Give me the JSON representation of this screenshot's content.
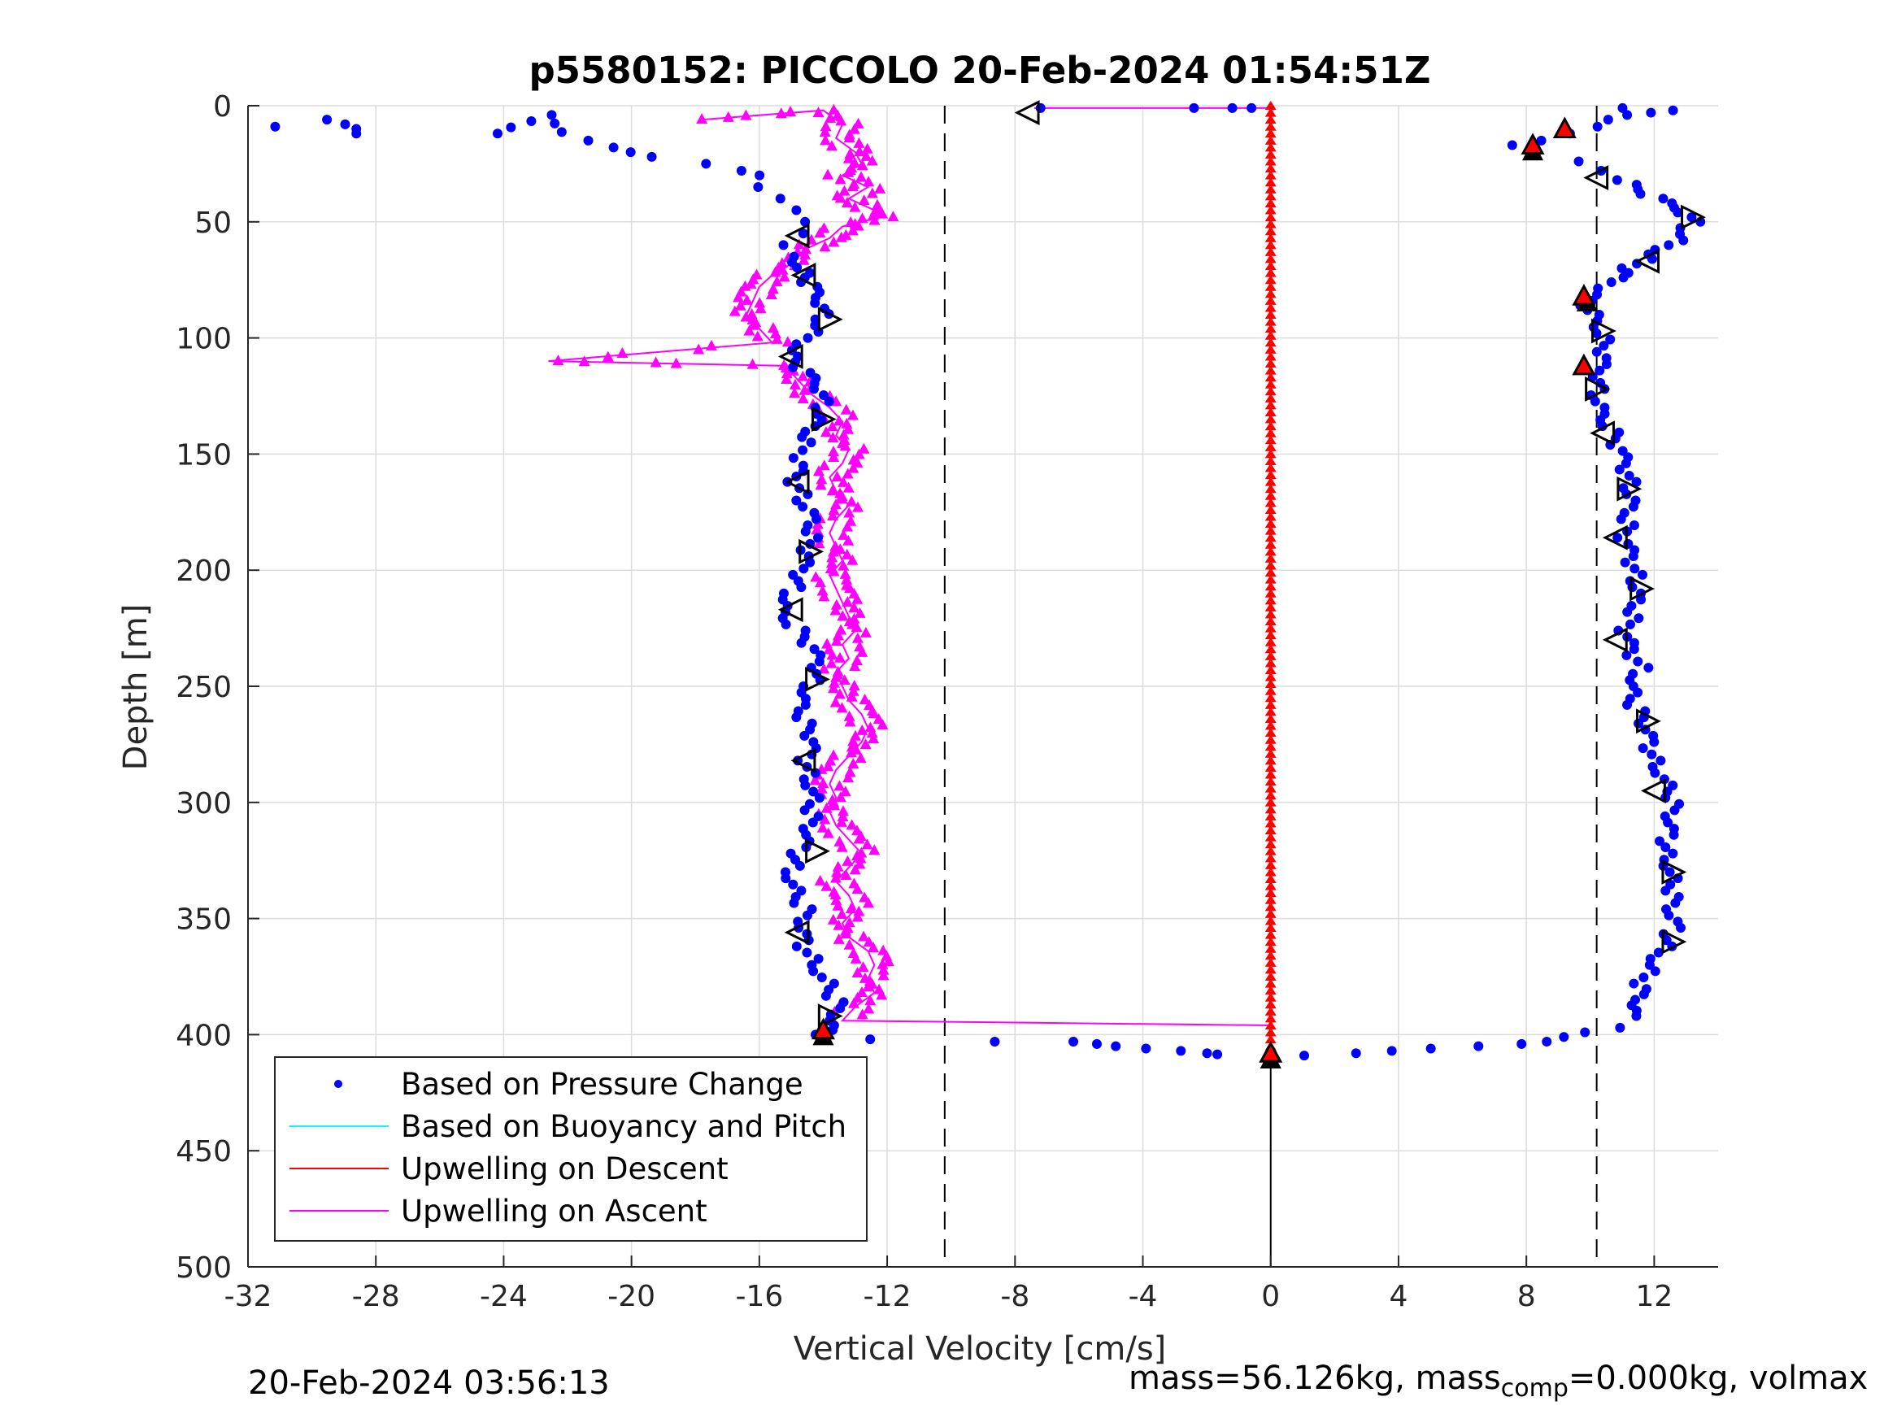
{
  "chart_data": {
    "type": "scatter",
    "title": "p5580152: PICCOLO 20-Feb-2024 01:54:51Z",
    "xlabel": "Vertical Velocity [cm/s]",
    "ylabel": "Depth [m]",
    "xlim": [
      -32,
      14
    ],
    "ylim": [
      0,
      500
    ],
    "y_reversed": true,
    "grid": true,
    "xticks": [
      -32,
      -28,
      -24,
      -20,
      -16,
      -12,
      -8,
      -4,
      0,
      4,
      8,
      12
    ],
    "yticks": [
      0,
      50,
      100,
      150,
      200,
      250,
      300,
      350,
      400,
      450,
      500
    ],
    "reference_lines": [
      {
        "x": -10.2,
        "style": "dashed"
      },
      {
        "x": 10.2,
        "style": "dashed"
      },
      {
        "x": 0,
        "style": "solid",
        "from_depth": 408,
        "to_depth": 500
      }
    ],
    "legend": {
      "position": "bottom-left",
      "entries": [
        {
          "label": "Based on Pressure Change",
          "color": "#0000ff",
          "marker": "dot"
        },
        {
          "label": "Based on Buoyancy and Pitch",
          "color": "#00ffff",
          "marker": "line"
        },
        {
          "label": "Upwelling on Descent",
          "color": "#ff0000",
          "marker": "line"
        },
        {
          "label": "Upwelling on Ascent",
          "color": "#ff00ff",
          "marker": "line"
        }
      ]
    },
    "series": [
      {
        "name": "Based on Pressure Change",
        "color": "#0000ff",
        "note_profile_descent": [
          [
            -31.4,
            9
          ],
          [
            -29.6,
            6
          ],
          [
            -28.4,
            12
          ],
          [
            -24,
            12
          ],
          [
            -22.6,
            4
          ],
          [
            -21.6,
            15
          ],
          [
            -20.6,
            18
          ],
          [
            -19.8,
            20
          ],
          [
            -19.2,
            22
          ],
          [
            -17.8,
            25
          ],
          [
            -16.8,
            28
          ],
          [
            -16,
            30
          ],
          [
            -15.8,
            35
          ],
          [
            -15.2,
            40
          ],
          [
            -15,
            45
          ],
          [
            -14.8,
            50
          ],
          [
            -14.6,
            55
          ],
          [
            -15,
            60
          ],
          [
            -14.8,
            65
          ],
          [
            -14.6,
            72
          ],
          [
            -14.4,
            78
          ],
          [
            -14.2,
            85
          ],
          [
            -14,
            92
          ],
          [
            -14.4,
            100
          ],
          [
            -15,
            108
          ],
          [
            -14.6,
            115
          ],
          [
            -14.2,
            122
          ],
          [
            -14,
            130
          ],
          [
            -14.2,
            138
          ],
          [
            -14.6,
            145
          ],
          [
            -14.8,
            155
          ],
          [
            -15,
            162
          ],
          [
            -14.6,
            170
          ],
          [
            -14.2,
            178
          ],
          [
            -14.4,
            186
          ],
          [
            -14.6,
            194
          ],
          [
            -14.8,
            202
          ],
          [
            -15,
            210
          ],
          [
            -15.2,
            218
          ],
          [
            -14.8,
            226
          ],
          [
            -14.4,
            234
          ],
          [
            -14.2,
            242
          ],
          [
            -14.4,
            250
          ],
          [
            -14.6,
            258
          ],
          [
            -14.6,
            266
          ],
          [
            -14.4,
            274
          ],
          [
            -14.6,
            282
          ],
          [
            -14.4,
            290
          ],
          [
            -14.2,
            298
          ],
          [
            -14.4,
            306
          ],
          [
            -14.6,
            314
          ],
          [
            -14.8,
            322
          ],
          [
            -15,
            330
          ],
          [
            -14.8,
            338
          ],
          [
            -14.6,
            346
          ],
          [
            -14.8,
            354
          ],
          [
            -14.6,
            362
          ],
          [
            -14.2,
            370
          ],
          [
            -13.8,
            378
          ],
          [
            -13.6,
            386
          ],
          [
            -13.8,
            394
          ],
          [
            -14,
            400
          ],
          [
            -12.4,
            402
          ],
          [
            -8.8,
            403
          ],
          [
            -6.4,
            403
          ],
          [
            -5.4,
            404
          ],
          [
            -4.6,
            405
          ],
          [
            -3.8,
            406
          ],
          [
            -3,
            407
          ],
          [
            -2.2,
            408
          ],
          [
            -1.6,
            408.5
          ]
        ],
        "note_profile_ascent": [
          [
            0.8,
            409
          ],
          [
            2.6,
            408
          ],
          [
            4,
            407
          ],
          [
            5.2,
            406
          ],
          [
            6.4,
            405
          ],
          [
            7.6,
            404
          ],
          [
            8.6,
            403
          ],
          [
            9.4,
            401
          ],
          [
            10,
            399
          ],
          [
            10.8,
            397
          ],
          [
            11.2,
            392
          ],
          [
            11.4,
            385
          ],
          [
            11.6,
            378
          ],
          [
            12,
            370
          ],
          [
            12.4,
            362
          ],
          [
            12.6,
            354
          ],
          [
            12.4,
            346
          ],
          [
            12.6,
            338
          ],
          [
            12.6,
            330
          ],
          [
            12.4,
            322
          ],
          [
            12.4,
            314
          ],
          [
            12.4,
            306
          ],
          [
            12.6,
            298
          ],
          [
            12.4,
            290
          ],
          [
            12,
            282
          ],
          [
            11.8,
            274
          ],
          [
            11.6,
            266
          ],
          [
            11.4,
            258
          ],
          [
            11.4,
            250
          ],
          [
            11.6,
            242
          ],
          [
            11.2,
            234
          ],
          [
            11,
            226
          ],
          [
            11.4,
            218
          ],
          [
            11.6,
            210
          ],
          [
            11.4,
            202
          ],
          [
            11.2,
            194
          ],
          [
            11,
            186
          ],
          [
            11.2,
            178
          ],
          [
            11.4,
            170
          ],
          [
            11.2,
            162
          ],
          [
            11,
            154
          ],
          [
            10.8,
            146
          ],
          [
            10.6,
            138
          ],
          [
            10.4,
            130
          ],
          [
            10.2,
            122
          ],
          [
            10.2,
            114
          ],
          [
            10.4,
            106
          ],
          [
            10.4,
            98
          ],
          [
            10.2,
            90
          ],
          [
            9.8,
            84
          ],
          [
            10.6,
            76
          ],
          [
            11.2,
            70
          ],
          [
            12,
            64
          ],
          [
            12.8,
            58
          ],
          [
            13.2,
            50
          ],
          [
            12.6,
            44
          ],
          [
            11.8,
            38
          ],
          [
            11,
            32
          ],
          [
            10.2,
            28
          ],
          [
            9.4,
            24
          ],
          [
            8.2,
            20
          ],
          [
            7.8,
            17
          ],
          [
            8.6,
            15
          ],
          [
            9.2,
            12
          ],
          [
            10,
            9
          ],
          [
            10.6,
            6
          ],
          [
            11.4,
            4
          ],
          [
            12,
            3
          ],
          [
            12.4,
            2
          ],
          [
            10.8,
            1
          ]
        ],
        "note_surface": [
          [
            -7.2,
            1
          ],
          [
            -2.4,
            1
          ],
          [
            -1.2,
            1
          ],
          [
            -0.6,
            1
          ]
        ]
      },
      {
        "name": "Upwelling on Descent",
        "color": "#ff0000",
        "x_constant": 0,
        "depth_range": [
          0,
          408
        ]
      },
      {
        "name": "Upwelling on Ascent",
        "color": "#ff00ff",
        "points": [
          [
            -17.8,
            6
          ],
          [
            -14,
            2
          ],
          [
            -13.4,
            8
          ],
          [
            -13.6,
            14
          ],
          [
            -13,
            20
          ],
          [
            -12.8,
            25
          ],
          [
            -13.4,
            30
          ],
          [
            -12.6,
            35
          ],
          [
            -13.2,
            40
          ],
          [
            -12.4,
            45
          ],
          [
            -12.2,
            48
          ],
          [
            -13.4,
            52
          ],
          [
            -13.8,
            57
          ],
          [
            -14.6,
            62
          ],
          [
            -15,
            68
          ],
          [
            -15.6,
            73
          ],
          [
            -16,
            78
          ],
          [
            -16.2,
            84
          ],
          [
            -16.4,
            90
          ],
          [
            -16,
            96
          ],
          [
            -15.6,
            102
          ],
          [
            -22.6,
            110
          ],
          [
            -15.2,
            112
          ],
          [
            -14.8,
            118
          ],
          [
            -14.4,
            124
          ],
          [
            -13.8,
            130
          ],
          [
            -13.4,
            136
          ],
          [
            -13.6,
            142
          ],
          [
            -13.2,
            148
          ],
          [
            -13.4,
            154
          ],
          [
            -13.8,
            160
          ],
          [
            -13.6,
            166
          ],
          [
            -13.2,
            172
          ],
          [
            -13.6,
            178
          ],
          [
            -13.8,
            184
          ],
          [
            -13.6,
            190
          ],
          [
            -13.4,
            196
          ],
          [
            -13.8,
            202
          ],
          [
            -13.6,
            208
          ],
          [
            -13.4,
            214
          ],
          [
            -13.2,
            220
          ],
          [
            -13,
            226
          ],
          [
            -13.4,
            232
          ],
          [
            -13.2,
            238
          ],
          [
            -13.6,
            244
          ],
          [
            -13.4,
            250
          ],
          [
            -13.2,
            256
          ],
          [
            -12.8,
            262
          ],
          [
            -12.6,
            268
          ],
          [
            -12.8,
            274
          ],
          [
            -13.2,
            280
          ],
          [
            -13.6,
            286
          ],
          [
            -13.8,
            292
          ],
          [
            -13.6,
            298
          ],
          [
            -13.8,
            304
          ],
          [
            -13.6,
            310
          ],
          [
            -13.2,
            316
          ],
          [
            -12.8,
            322
          ],
          [
            -13.2,
            328
          ],
          [
            -13.6,
            334
          ],
          [
            -13.2,
            340
          ],
          [
            -13,
            346
          ],
          [
            -13.4,
            352
          ],
          [
            -13.2,
            358
          ],
          [
            -12.6,
            364
          ],
          [
            -12.4,
            370
          ],
          [
            -12.6,
            376
          ],
          [
            -12.4,
            382
          ],
          [
            -13,
            388
          ],
          [
            -13.4,
            394
          ],
          [
            0,
            396
          ]
        ]
      }
    ],
    "markers": {
      "open_triangles": [
        {
          "x": -7.6,
          "y": 3,
          "dir": "left"
        },
        {
          "x": -14.8,
          "y": 56,
          "dir": "left"
        },
        {
          "x": -14.6,
          "y": 73,
          "dir": "left"
        },
        {
          "x": -13.8,
          "y": 92,
          "dir": "right"
        },
        {
          "x": -15,
          "y": 108,
          "dir": "left"
        },
        {
          "x": -14,
          "y": 135,
          "dir": "right"
        },
        {
          "x": -14.8,
          "y": 162,
          "dir": "left"
        },
        {
          "x": -14.4,
          "y": 192,
          "dir": "right"
        },
        {
          "x": -15,
          "y": 217,
          "dir": "left"
        },
        {
          "x": -14.2,
          "y": 247,
          "dir": "right"
        },
        {
          "x": -14.6,
          "y": 282,
          "dir": "left"
        },
        {
          "x": -14.2,
          "y": 321,
          "dir": "right"
        },
        {
          "x": -14.8,
          "y": 356,
          "dir": "left"
        },
        {
          "x": -13.8,
          "y": 392,
          "dir": "right"
        },
        {
          "x": 10.2,
          "y": 31,
          "dir": "left"
        },
        {
          "x": 13.2,
          "y": 48,
          "dir": "right"
        },
        {
          "x": 11.8,
          "y": 67,
          "dir": "left"
        },
        {
          "x": 10.4,
          "y": 97,
          "dir": "right"
        },
        {
          "x": 10.2,
          "y": 122,
          "dir": "right"
        },
        {
          "x": 10.4,
          "y": 141,
          "dir": "left"
        },
        {
          "x": 11.2,
          "y": 165,
          "dir": "right"
        },
        {
          "x": 10.8,
          "y": 186,
          "dir": "left"
        },
        {
          "x": 11.6,
          "y": 208,
          "dir": "right"
        },
        {
          "x": 10.8,
          "y": 230,
          "dir": "left"
        },
        {
          "x": 11.8,
          "y": 265,
          "dir": "right"
        },
        {
          "x": 12,
          "y": 295,
          "dir": "left"
        },
        {
          "x": 12.6,
          "y": 330,
          "dir": "right"
        },
        {
          "x": 12.6,
          "y": 360,
          "dir": "right"
        }
      ],
      "red_triangles": [
        {
          "x": 9.2,
          "y": 10
        },
        {
          "x": 8.2,
          "y": 17
        },
        {
          "x": 9.8,
          "y": 82
        },
        {
          "x": 9.8,
          "y": 112
        },
        {
          "x": -14,
          "y": 398
        },
        {
          "x": 0,
          "y": 408
        }
      ],
      "black_triangles": [
        {
          "x": 8.2,
          "y": 19
        },
        {
          "x": 9.9,
          "y": 84
        },
        {
          "x": -14,
          "y": 400
        },
        {
          "x": 0,
          "y": 410
        }
      ]
    }
  },
  "footer": {
    "timestamp": "20-Feb-2024 03:56:13",
    "mass_text": "mass=56.126kg, mass",
    "mass_sub": "comp",
    "mass_rest": "=0.000kg, volmax"
  }
}
